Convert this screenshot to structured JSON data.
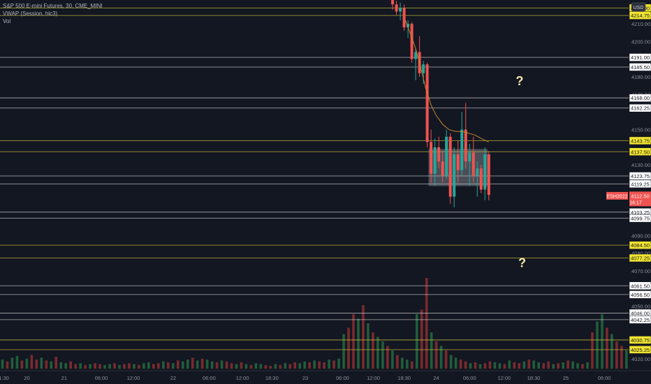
{
  "legend": {
    "symbol": "S&P 500 E-mini Futures, 30, CME_MINI",
    "vwap": "VWAP (Session, hlc3)",
    "vol": "Vol"
  },
  "currency_badge": "USD",
  "question_mark": "?",
  "colors": {
    "background": "#131722",
    "up": "#26a69a",
    "down": "#ef5350",
    "vol_up": "#1f5e3a",
    "vol_down": "#7a2a2e",
    "white_level": "#c8c8c8",
    "yellow_level": "#d4c23a",
    "vwap": "#c8862a",
    "axis_text": "#8c909a"
  },
  "chart_data": {
    "type": "candlestick",
    "title": "S&P 500 E-mini Futures, 30, CME_MINI",
    "ylim": [
      4014.5,
      4223.5
    ],
    "x_range": [
      0,
      49
    ],
    "y_ticks": [
      4020,
      4050,
      4070,
      4080,
      4090,
      4110,
      4120,
      4130,
      4150,
      4170,
      4180,
      4200,
      4210
    ],
    "x_ticks": [
      {
        "t": 0.3,
        "label": "1:30"
      },
      {
        "t": 2.1,
        "label": "20"
      },
      {
        "t": 5.0,
        "label": "21"
      },
      {
        "t": 7.9,
        "label": "06:00"
      },
      {
        "t": 10.4,
        "label": "12:00"
      },
      {
        "t": 13.5,
        "label": "22"
      },
      {
        "t": 16.3,
        "label": "06:00"
      },
      {
        "t": 18.9,
        "label": "12:00"
      },
      {
        "t": 21.2,
        "label": "18:30"
      },
      {
        "t": 23.8,
        "label": "23"
      },
      {
        "t": 26.7,
        "label": "06:00"
      },
      {
        "t": 29.1,
        "label": "12:00"
      },
      {
        "t": 31.5,
        "label": "18:30"
      },
      {
        "t": 34.0,
        "label": "24"
      },
      {
        "t": 36.6,
        "label": "06:00"
      },
      {
        "t": 39.3,
        "label": "12:00"
      },
      {
        "t": 41.6,
        "label": "18:30"
      },
      {
        "t": 44.1,
        "label": "25"
      },
      {
        "t": 47.1,
        "label": "06:00"
      }
    ],
    "levels": [
      {
        "price": 4219.0,
        "label": "4219.00",
        "color": "yellow"
      },
      {
        "price": 4214.75,
        "label": "4214.75",
        "color": "yellow"
      },
      {
        "price": 4191.0,
        "label": "4191.00",
        "color": "white"
      },
      {
        "price": 4185.5,
        "label": "4185.50",
        "color": "white"
      },
      {
        "price": 4168.0,
        "label": "4168.00",
        "color": "white"
      },
      {
        "price": 4162.25,
        "label": "4162.25",
        "color": "white"
      },
      {
        "price": 4143.75,
        "label": "4143.75",
        "color": "yellow"
      },
      {
        "price": 4137.5,
        "label": "4137.50",
        "color": "yellow"
      },
      {
        "price": 4123.75,
        "label": "4123.75",
        "color": "white"
      },
      {
        "price": 4119.25,
        "label": "4119.25",
        "color": "white"
      },
      {
        "price": 4103.25,
        "label": "4103.25",
        "color": "white"
      },
      {
        "price": 4099.75,
        "label": "4099.75",
        "color": "white"
      },
      {
        "price": 4084.5,
        "label": "4084.50",
        "color": "yellow"
      },
      {
        "price": 4077.25,
        "label": "4077.25",
        "color": "yellow"
      },
      {
        "price": 4061.5,
        "label": "4061.50",
        "color": "white"
      },
      {
        "price": 4056.5,
        "label": "4056.50",
        "color": "white"
      },
      {
        "price": 4046.0,
        "label": "4046.00",
        "color": "white"
      },
      {
        "price": 4042.25,
        "label": "4042.25",
        "color": "white"
      },
      {
        "price": 4030.75,
        "label": "4030.75",
        "color": "yellow"
      },
      {
        "price": 4025.25,
        "label": "4025.25",
        "color": "yellow"
      }
    ],
    "current_price": {
      "symbol": "ESH2022",
      "price": "4112.50",
      "countdown": "16:17",
      "value": 4112.5
    },
    "question_marks": [
      {
        "t": 40.5,
        "price": 4177
      },
      {
        "t": 40.7,
        "price": 4074
      }
    ],
    "highlight_zone": {
      "t0": 33.4,
      "t1": 38.0,
      "price_low": 4118,
      "price_high": 4139
    },
    "candles": [
      {
        "t": 30.6,
        "o": 4228,
        "h": 4230,
        "l": 4218,
        "c": 4221
      },
      {
        "t": 30.9,
        "o": 4221,
        "h": 4223,
        "l": 4215,
        "c": 4217
      },
      {
        "t": 31.2,
        "o": 4217,
        "h": 4222,
        "l": 4212,
        "c": 4219
      },
      {
        "t": 31.5,
        "o": 4219,
        "h": 4221,
        "l": 4206,
        "c": 4208
      },
      {
        "t": 31.8,
        "o": 4208,
        "h": 4212,
        "l": 4202,
        "c": 4210
      },
      {
        "t": 32.1,
        "o": 4210,
        "h": 4211,
        "l": 4188,
        "c": 4190
      },
      {
        "t": 32.4,
        "o": 4190,
        "h": 4196,
        "l": 4178,
        "c": 4194
      },
      {
        "t": 32.7,
        "o": 4194,
        "h": 4203,
        "l": 4180,
        "c": 4182
      },
      {
        "t": 33.0,
        "o": 4182,
        "h": 4189,
        "l": 4176,
        "c": 4187
      },
      {
        "t": 33.3,
        "o": 4187,
        "h": 4188,
        "l": 4140,
        "c": 4143
      },
      {
        "t": 33.6,
        "o": 4143,
        "h": 4150,
        "l": 4120,
        "c": 4125
      },
      {
        "t": 33.9,
        "o": 4125,
        "h": 4145,
        "l": 4118,
        "c": 4140
      },
      {
        "t": 34.2,
        "o": 4140,
        "h": 4146,
        "l": 4128,
        "c": 4132
      },
      {
        "t": 34.5,
        "o": 4132,
        "h": 4138,
        "l": 4120,
        "c": 4124
      },
      {
        "t": 34.8,
        "o": 4124,
        "h": 4150,
        "l": 4122,
        "c": 4146
      },
      {
        "t": 35.1,
        "o": 4146,
        "h": 4148,
        "l": 4108,
        "c": 4112
      },
      {
        "t": 35.4,
        "o": 4112,
        "h": 4140,
        "l": 4106,
        "c": 4136
      },
      {
        "t": 35.7,
        "o": 4136,
        "h": 4144,
        "l": 4120,
        "c": 4127
      },
      {
        "t": 36.0,
        "o": 4127,
        "h": 4160,
        "l": 4124,
        "c": 4150
      },
      {
        "t": 36.3,
        "o": 4150,
        "h": 4165,
        "l": 4128,
        "c": 4132
      },
      {
        "t": 36.6,
        "o": 4132,
        "h": 4142,
        "l": 4118,
        "c": 4137
      },
      {
        "t": 36.9,
        "o": 4137,
        "h": 4146,
        "l": 4120,
        "c": 4124
      },
      {
        "t": 37.2,
        "o": 4124,
        "h": 4132,
        "l": 4112,
        "c": 4128
      },
      {
        "t": 37.5,
        "o": 4128,
        "h": 4130,
        "l": 4114,
        "c": 4116
      },
      {
        "t": 37.8,
        "o": 4116,
        "h": 4140,
        "l": 4110,
        "c": 4136
      },
      {
        "t": 38.1,
        "o": 4136,
        "h": 4138,
        "l": 4110,
        "c": 4113
      }
    ],
    "vwap": [
      {
        "t": 31.6,
        "v": 4212
      },
      {
        "t": 32.0,
        "v": 4204
      },
      {
        "t": 32.4,
        "v": 4196
      },
      {
        "t": 32.8,
        "v": 4185
      },
      {
        "t": 33.2,
        "v": 4173
      },
      {
        "t": 33.6,
        "v": 4164
      },
      {
        "t": 34.0,
        "v": 4158
      },
      {
        "t": 34.5,
        "v": 4153
      },
      {
        "t": 35.0,
        "v": 4150
      },
      {
        "t": 35.5,
        "v": 4149
      },
      {
        "t": 36.0,
        "v": 4149
      },
      {
        "t": 36.5,
        "v": 4148
      },
      {
        "t": 37.0,
        "v": 4147
      },
      {
        "t": 37.5,
        "v": 4145
      },
      {
        "t": 38.1,
        "v": 4143
      }
    ],
    "volume": {
      "t_start": 0.2,
      "t_step": 0.38,
      "max": 100,
      "values": [
        10,
        8,
        12,
        14,
        9,
        11,
        15,
        10,
        12,
        9,
        8,
        13,
        7,
        6,
        8,
        5,
        6,
        4,
        5,
        6,
        5,
        4,
        5,
        6,
        4,
        5,
        6,
        5,
        4,
        6,
        7,
        5,
        6,
        8,
        7,
        6,
        9,
        8,
        10,
        12,
        9,
        11,
        10,
        8,
        7,
        9,
        8,
        6,
        5,
        7,
        5,
        4,
        6,
        5,
        4,
        3,
        5,
        4,
        6,
        5,
        7,
        6,
        8,
        7,
        9,
        8,
        7,
        10,
        9,
        11,
        38,
        45,
        60,
        55,
        70,
        50,
        40,
        35,
        30,
        25,
        20,
        15,
        12,
        10,
        8,
        60,
        65,
        100,
        40,
        30,
        25,
        20,
        15,
        12,
        10,
        8,
        6,
        7,
        5,
        6,
        8,
        7,
        6,
        5,
        9,
        7,
        6,
        8,
        10,
        9,
        7,
        6,
        8,
        5,
        6,
        7,
        9,
        8,
        6,
        5,
        7,
        40,
        52,
        60,
        45,
        38,
        30,
        25,
        20,
        15,
        12,
        10,
        8,
        7,
        6,
        5,
        8,
        100,
        30,
        25,
        20,
        15,
        12,
        10,
        9,
        8,
        7,
        11,
        9,
        8,
        10,
        12,
        9,
        7,
        8,
        6,
        10,
        9,
        7,
        8,
        5,
        6,
        8,
        7,
        5,
        4
      ],
      "up_pattern": [
        1,
        0,
        1,
        1,
        0,
        1,
        0,
        0,
        1,
        0,
        1,
        0,
        1,
        1,
        0,
        0,
        1,
        0,
        1,
        0,
        0,
        1,
        1,
        0,
        1,
        0,
        0,
        1,
        0,
        1,
        1,
        0,
        0,
        1,
        0,
        1,
        0,
        1,
        1,
        0
      ]
    }
  }
}
